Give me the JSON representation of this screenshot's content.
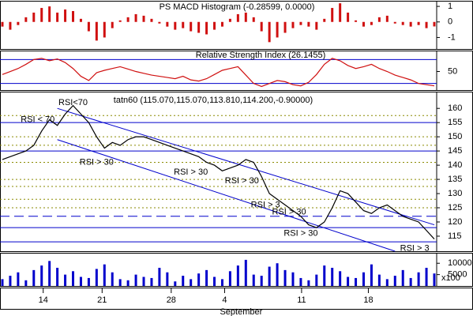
{
  "chart_data": [
    {
      "type": "bar",
      "title": "PS MACD Histogram (-0.28599, 0.0000)",
      "color": "#d01010",
      "values": [
        -0.3,
        -0.5,
        -0.2,
        0.3,
        0.6,
        0.9,
        1.0,
        0.6,
        0.8,
        0.7,
        0.2,
        -0.6,
        -1.2,
        -1.0,
        -0.4,
        0.1,
        0.3,
        0.5,
        0.4,
        0.2,
        -0.1,
        -0.3,
        -0.5,
        -0.4,
        -0.6,
        -0.7,
        -0.8,
        -0.5,
        -0.3,
        0.2,
        0.5,
        0.6,
        0.3,
        -0.6,
        -1.3,
        -1.0,
        -0.7,
        -0.4,
        -0.2,
        -0.3,
        -0.5,
        0.2,
        0.9,
        1.2,
        0.6,
        0.1,
        -0.3,
        -0.2,
        0.3,
        0.4,
        -0.1,
        -0.2,
        -0.3,
        -0.2,
        -0.4,
        -0.29
      ],
      "ylim": [
        -1.74,
        1.36
      ],
      "yticks": [
        1,
        0,
        -1
      ]
    },
    {
      "type": "line",
      "title": "Relative Strength Index (26.1455)",
      "color": "#d01010",
      "values": [
        45,
        50,
        55,
        62,
        70,
        72,
        68,
        71,
        65,
        55,
        42,
        35,
        48,
        52,
        55,
        58,
        54,
        50,
        47,
        44,
        42,
        40,
        38,
        42,
        36,
        34,
        38,
        45,
        52,
        55,
        58,
        44,
        30,
        25,
        30,
        35,
        33,
        28,
        26,
        32,
        45,
        62,
        72,
        68,
        60,
        55,
        58,
        62,
        55,
        50,
        44,
        40,
        36,
        30,
        28,
        26
      ],
      "ylim": [
        19,
        85
      ],
      "yticks": [
        50
      ],
      "hlines": [
        {
          "value": 70,
          "style": "solid"
        },
        {
          "value": 30,
          "style": "solid"
        }
      ]
    },
    {
      "type": "line",
      "title": "tatn60 (115.070,115.070,113.810,114.200,-0.90000)",
      "color": "#000000",
      "values": [
        142,
        143,
        144,
        145,
        147,
        152,
        156,
        154,
        158,
        161,
        158,
        155,
        150,
        146,
        148,
        147,
        149,
        150,
        150,
        149,
        148,
        147,
        146,
        145,
        144,
        143,
        141,
        140,
        138,
        139,
        140,
        142,
        141,
        136,
        130,
        128,
        126,
        124,
        122,
        119,
        118,
        120,
        125,
        131,
        130,
        127,
        124,
        123,
        125,
        126,
        124,
        122,
        121,
        120,
        117,
        114
      ],
      "ylim": [
        109.7,
        165.9
      ],
      "yticks": [
        115,
        120,
        125,
        130,
        135,
        140,
        145,
        150,
        155,
        160
      ],
      "hlines": [
        {
          "value": 155,
          "style": "solid"
        },
        {
          "value": 145,
          "style": "solid"
        },
        {
          "value": 118,
          "style": "solid"
        },
        {
          "value": 113,
          "style": "solid"
        },
        {
          "value": 122,
          "style": "dashed"
        },
        {
          "value": 157.5,
          "style": "dotted"
        },
        {
          "value": 150,
          "style": "dotted"
        },
        {
          "value": 147,
          "style": "dotted"
        },
        {
          "value": 141,
          "style": "dotted"
        },
        {
          "value": 135,
          "style": "dotted"
        },
        {
          "value": 132.5,
          "style": "dotted"
        },
        {
          "value": 128,
          "style": "dotted"
        },
        {
          "value": 125,
          "style": "dotted"
        }
      ],
      "trendlines": [
        [
          7,
          160,
          55,
          119
        ],
        [
          7,
          149,
          50,
          109.7
        ]
      ],
      "annotations": [
        {
          "text": "RSI < 70",
          "x": 4.5,
          "y": 156
        },
        {
          "text": "RSI<70",
          "x": 9,
          "y": 162
        },
        {
          "text": "RSI > 30",
          "x": 12,
          "y": 141
        },
        {
          "text": "RSI > 30",
          "x": 24,
          "y": 137.5
        },
        {
          "text": "RSI > 30",
          "x": 30.5,
          "y": 134.5
        },
        {
          "text": "RSI > 3",
          "x": 33.5,
          "y": 126
        },
        {
          "text": "RSI > 30",
          "x": 36.5,
          "y": 123.5
        },
        {
          "text": "RSI > 30",
          "x": 38,
          "y": 116
        },
        {
          "text": "RSI > 3",
          "x": 52.5,
          "y": 110.7
        }
      ]
    },
    {
      "type": "bar",
      "color": "#0000cc",
      "unit_label": "x100",
      "values": [
        3000,
        4500,
        6000,
        2500,
        7000,
        9000,
        11000,
        8000,
        5000,
        6500,
        4000,
        3500,
        7500,
        9500,
        6000,
        3000,
        2500,
        5000,
        4000,
        3500,
        8000,
        6000,
        2000,
        4500,
        3000,
        5500,
        7000,
        4000,
        3000,
        6500,
        9000,
        11500,
        5000,
        4500,
        8500,
        10000,
        7000,
        6000,
        3500,
        2500,
        5000,
        9000,
        8000,
        6500,
        4000,
        3500,
        6000,
        9500,
        5000,
        3000,
        4500,
        7000,
        3500,
        6000,
        8000,
        5500
      ],
      "ylim": [
        0,
        14600
      ],
      "yticks": [
        5000,
        10000
      ],
      "xlim": [
        0,
        55
      ],
      "xlabel": "September",
      "xticks": [
        {
          "value": 5.2,
          "label": "14"
        },
        {
          "value": 12.7,
          "label": "21"
        },
        {
          "value": 21.5,
          "label": "28"
        },
        {
          "value": 28.3,
          "label": "4"
        },
        {
          "value": 38.1,
          "label": "11"
        },
        {
          "value": 46.6,
          "label": "18"
        }
      ]
    }
  ]
}
